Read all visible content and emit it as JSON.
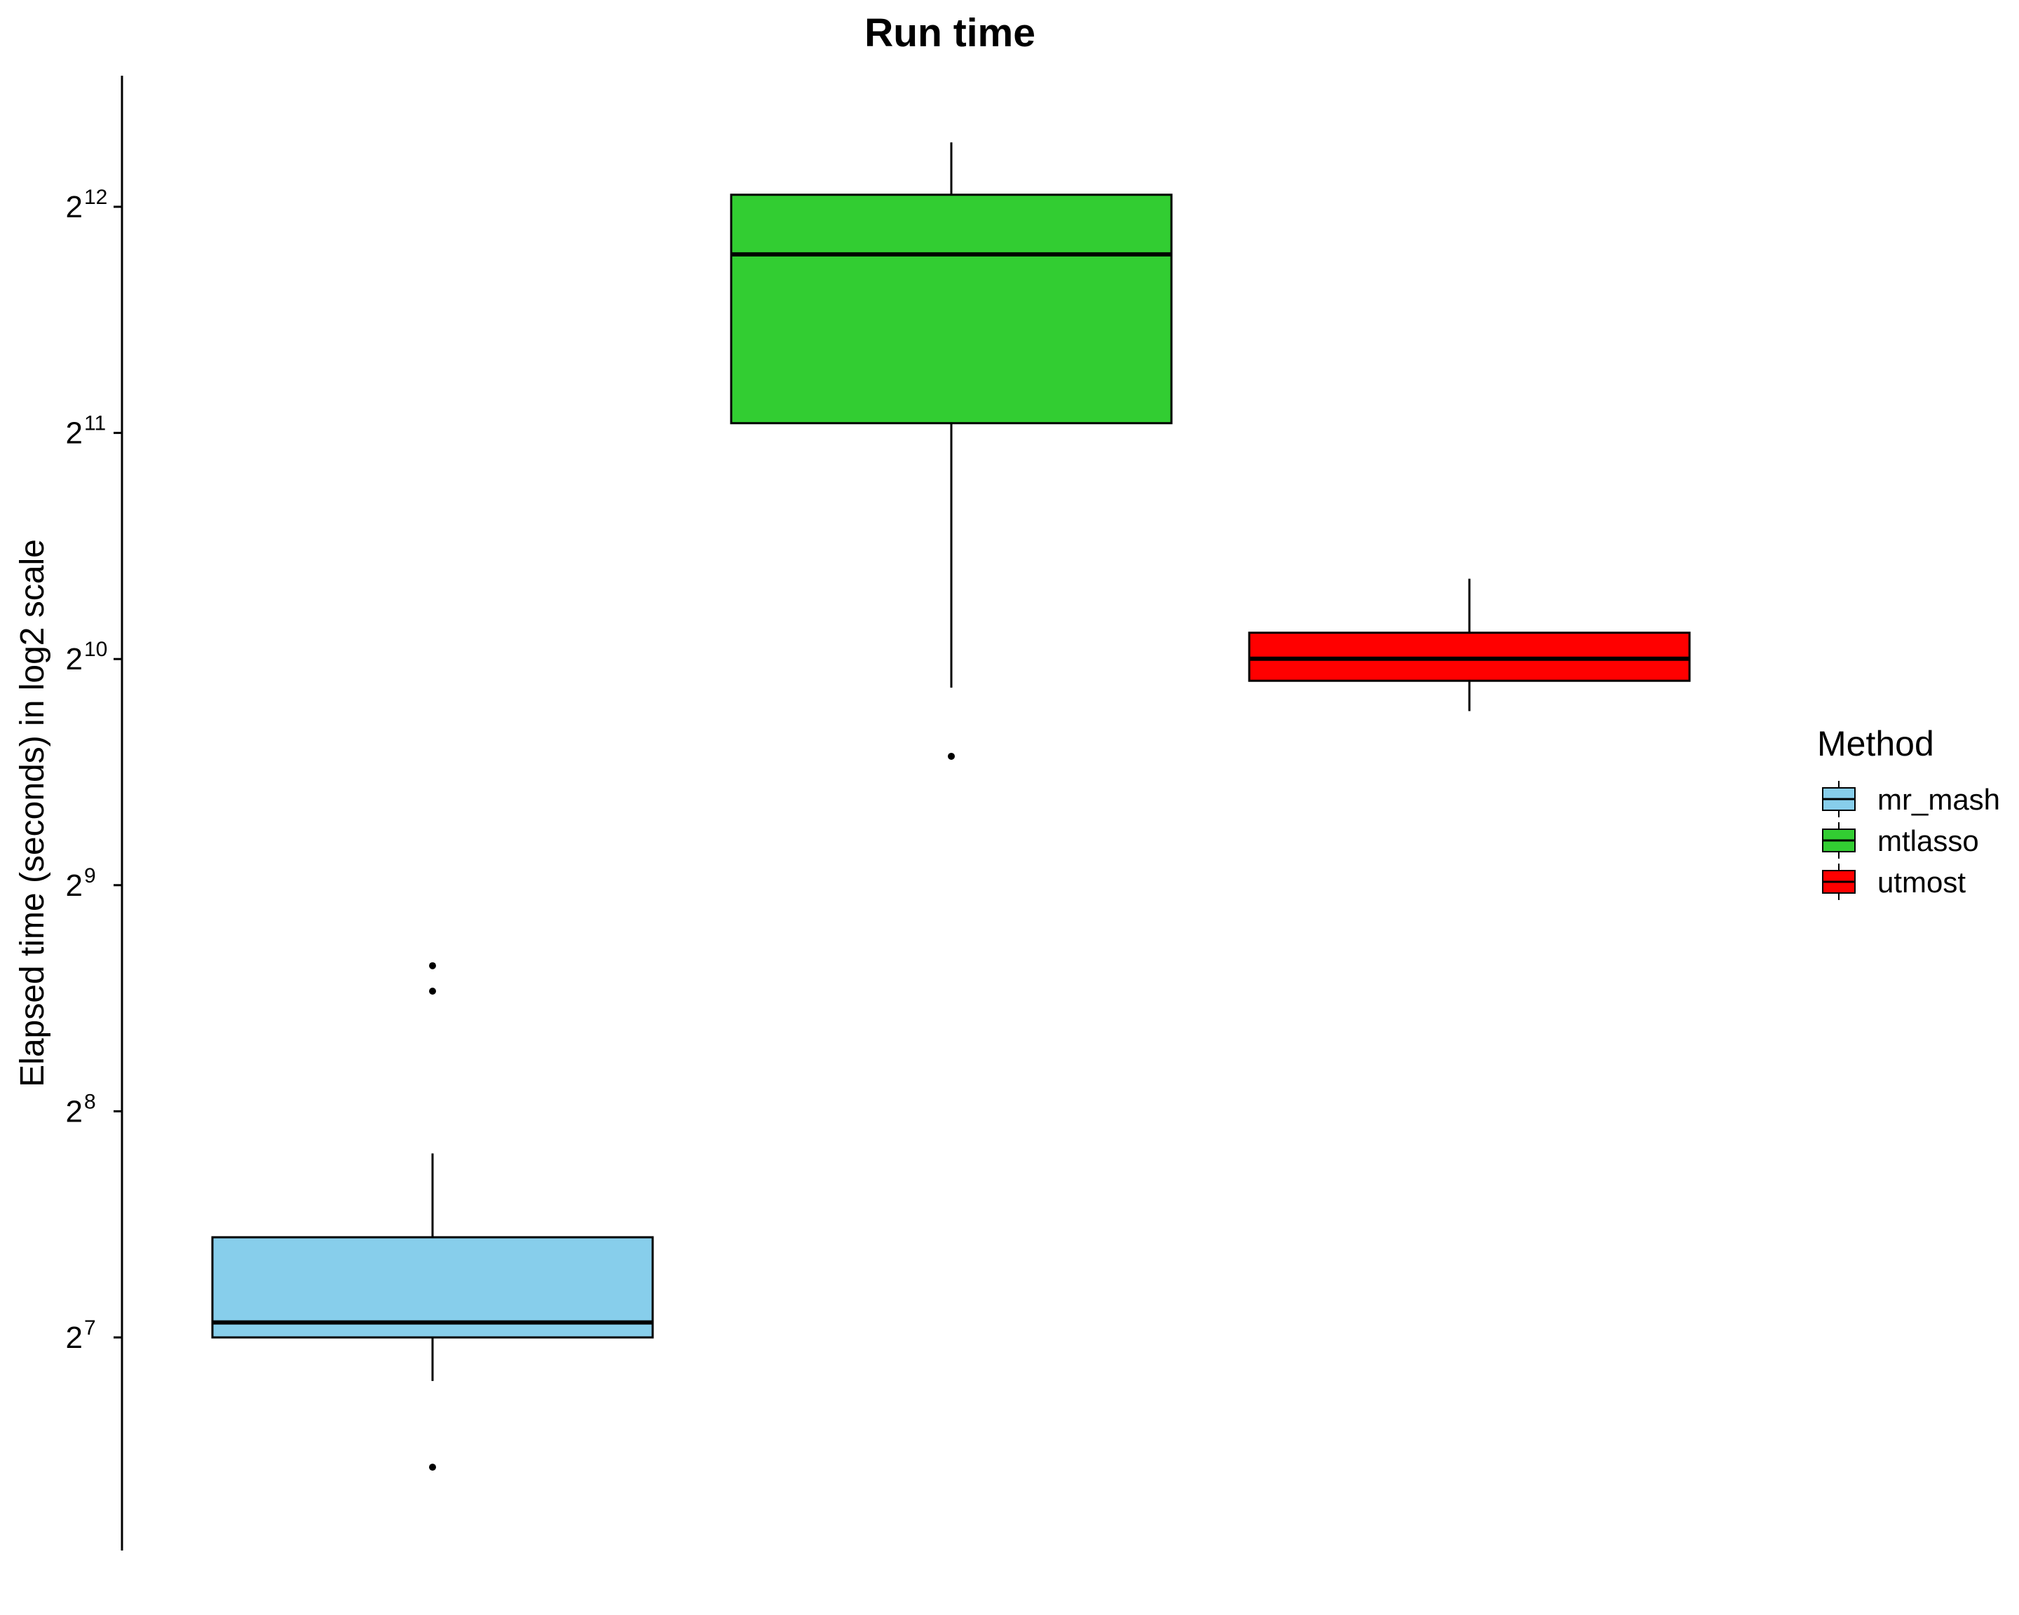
{
  "chart_data": {
    "type": "box",
    "title": "Run time",
    "xlabel": "",
    "ylabel": "Elapsed time (seconds) in log2 scale",
    "y_scale": "log2",
    "y_ticks": [
      {
        "base": "2",
        "exp": "7",
        "value": 128
      },
      {
        "base": "2",
        "exp": "8",
        "value": 256
      },
      {
        "base": "2",
        "exp": "9",
        "value": 512
      },
      {
        "base": "2",
        "exp": "10",
        "value": 1024
      },
      {
        "base": "2",
        "exp": "11",
        "value": 2048
      },
      {
        "base": "2",
        "exp": "12",
        "value": 4096
      }
    ],
    "ylim": [
      73,
      5638
    ],
    "legend_title": "Method",
    "legend_position": "right",
    "grid": false,
    "series": [
      {
        "name": "mr_mash",
        "color": "#87CEEB",
        "whisker_low": 112,
        "q1": 128,
        "median": 134,
        "q3": 174,
        "whisker_high": 225,
        "outliers": [
          86,
          370,
          400
        ]
      },
      {
        "name": "mtlasso",
        "color": "#32CD32",
        "whisker_low": 938,
        "q1": 2110,
        "median": 3540,
        "q3": 4250,
        "whisker_high": 4990,
        "outliers": [
          760
        ]
      },
      {
        "name": "utmost",
        "color": "#FF0000",
        "whisker_low": 873,
        "q1": 958,
        "median": 1025,
        "q3": 1110,
        "whisker_high": 1310,
        "outliers": []
      }
    ]
  }
}
